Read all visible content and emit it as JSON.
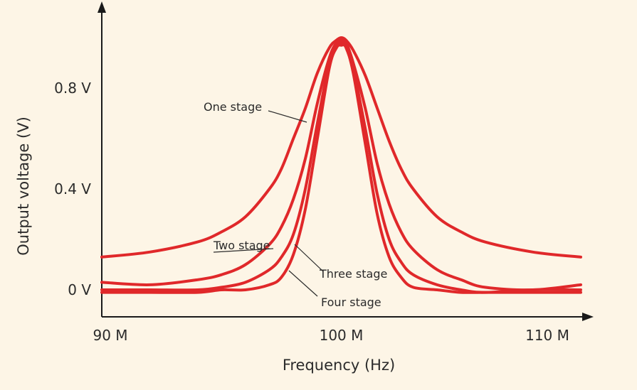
{
  "chart_data": {
    "type": "line",
    "xlabel": "Frequency (Hz)",
    "ylabel": "Output voltage (V)",
    "xlim": [
      90,
      110
    ],
    "ylim": [
      -0.1,
      1.05
    ],
    "x_unit_multiplier": "M",
    "xticks": [
      {
        "value": 90,
        "label": "90 M"
      },
      {
        "value": 100,
        "label": "100 M"
      },
      {
        "value": 110,
        "label": "110 M"
      }
    ],
    "yticks": [
      {
        "value": 0,
        "label": "0 V"
      },
      {
        "value": 0.4,
        "label": "0.4 V"
      },
      {
        "value": 0.8,
        "label": "0.8 V"
      }
    ],
    "grid": false,
    "color": "#e0282a",
    "series": [
      {
        "name": "One stage",
        "x": [
          90,
          92,
          94,
          95,
          96,
          97,
          97.5,
          98,
          98.5,
          99,
          99.5,
          99.8,
          100,
          100.2,
          100.5,
          101,
          101.5,
          102,
          102.5,
          103,
          104,
          105,
          106,
          108,
          110
        ],
        "y": [
          0.13,
          0.15,
          0.19,
          0.23,
          0.29,
          0.4,
          0.48,
          0.6,
          0.72,
          0.86,
          0.96,
          0.99,
          1.0,
          0.99,
          0.95,
          0.85,
          0.72,
          0.59,
          0.48,
          0.4,
          0.29,
          0.23,
          0.19,
          0.15,
          0.13
        ]
      },
      {
        "name": "Two stage",
        "x": [
          90,
          92,
          94,
          95,
          96,
          97,
          97.5,
          98,
          98.5,
          99,
          99.5,
          99.8,
          100,
          100.2,
          100.5,
          101,
          101.5,
          102,
          102.5,
          103,
          104,
          105,
          106,
          108,
          110
        ],
        "y": [
          0.03,
          0.02,
          0.04,
          0.06,
          0.1,
          0.18,
          0.25,
          0.36,
          0.52,
          0.74,
          0.92,
          0.98,
          0.99,
          0.98,
          0.9,
          0.72,
          0.5,
          0.34,
          0.23,
          0.16,
          0.08,
          0.04,
          0.01,
          0.0,
          0.02
        ]
      },
      {
        "name": "Three stage",
        "x": [
          90,
          92,
          94,
          95,
          96,
          97,
          97.5,
          98,
          98.5,
          99,
          99.5,
          99.8,
          100,
          100.2,
          100.5,
          101,
          101.5,
          102,
          102.5,
          103,
          104,
          105,
          106,
          108,
          110
        ],
        "y": [
          0.0,
          0.0,
          0.0,
          0.01,
          0.03,
          0.08,
          0.13,
          0.22,
          0.4,
          0.66,
          0.9,
          0.97,
          0.98,
          0.97,
          0.88,
          0.64,
          0.38,
          0.2,
          0.11,
          0.06,
          0.02,
          0.0,
          -0.01,
          0.0,
          0.0
        ]
      },
      {
        "name": "Four stage",
        "x": [
          90,
          92,
          94,
          95,
          96,
          97,
          97.5,
          98,
          98.5,
          99,
          99.5,
          99.8,
          100,
          100.2,
          100.5,
          101,
          101.5,
          102,
          102.5,
          103,
          104,
          105,
          106,
          108,
          110
        ],
        "y": [
          -0.01,
          -0.01,
          -0.01,
          0.0,
          0.0,
          0.02,
          0.05,
          0.14,
          0.32,
          0.6,
          0.88,
          0.96,
          0.97,
          0.96,
          0.86,
          0.58,
          0.3,
          0.13,
          0.05,
          0.01,
          0.0,
          -0.01,
          -0.01,
          -0.01,
          -0.01
        ]
      }
    ],
    "annotations": [
      {
        "text": "One stage",
        "series": "One stage"
      },
      {
        "text": "Two stage",
        "series": "Two stage"
      },
      {
        "text": "Three stage",
        "series": "Three stage"
      },
      {
        "text": "Four stage",
        "series": "Four stage"
      }
    ]
  }
}
